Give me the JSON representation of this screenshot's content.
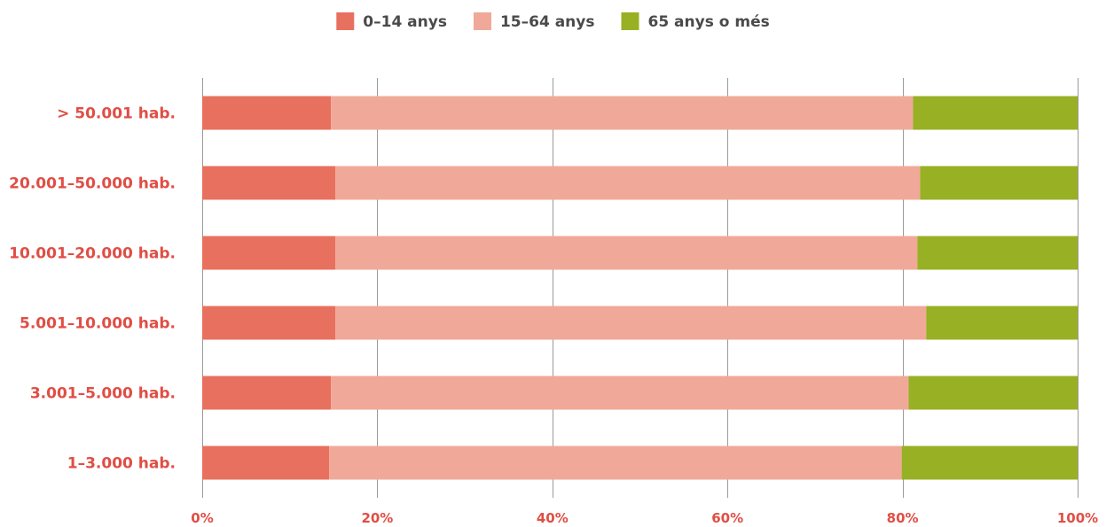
{
  "chart_data": {
    "type": "bar",
    "orientation": "horizontal",
    "stacked": "percent",
    "title": "",
    "xlabel": "",
    "ylabel": "",
    "categories": [
      "> 50.001 hab.",
      "20.001–50.000 hab.",
      "10.001–20.000 hab.",
      "5.001–10.000 hab.",
      "3.001–5.000 hab.",
      "1–3.000 hab."
    ],
    "series": [
      {
        "name": "0–14 anys",
        "color": "#E8705E",
        "values": [
          14.7,
          15.2,
          15.2,
          15.2,
          14.7,
          14.5
        ]
      },
      {
        "name": "15–64 anys",
        "color": "#F0A998",
        "values": [
          66.5,
          66.8,
          66.5,
          67.5,
          66.0,
          65.4
        ]
      },
      {
        "name": "65 anys o més",
        "color": "#98B024",
        "values": [
          18.8,
          18.0,
          18.3,
          17.3,
          19.3,
          20.1
        ]
      }
    ],
    "xlim": [
      0,
      100
    ],
    "x_ticks": [
      "0%",
      "20%",
      "40%",
      "60%",
      "80%",
      "100%"
    ],
    "grid": "vertical",
    "legend_position": "top",
    "label_color": "#E04E45",
    "grid_color": "#9a9a9a"
  }
}
